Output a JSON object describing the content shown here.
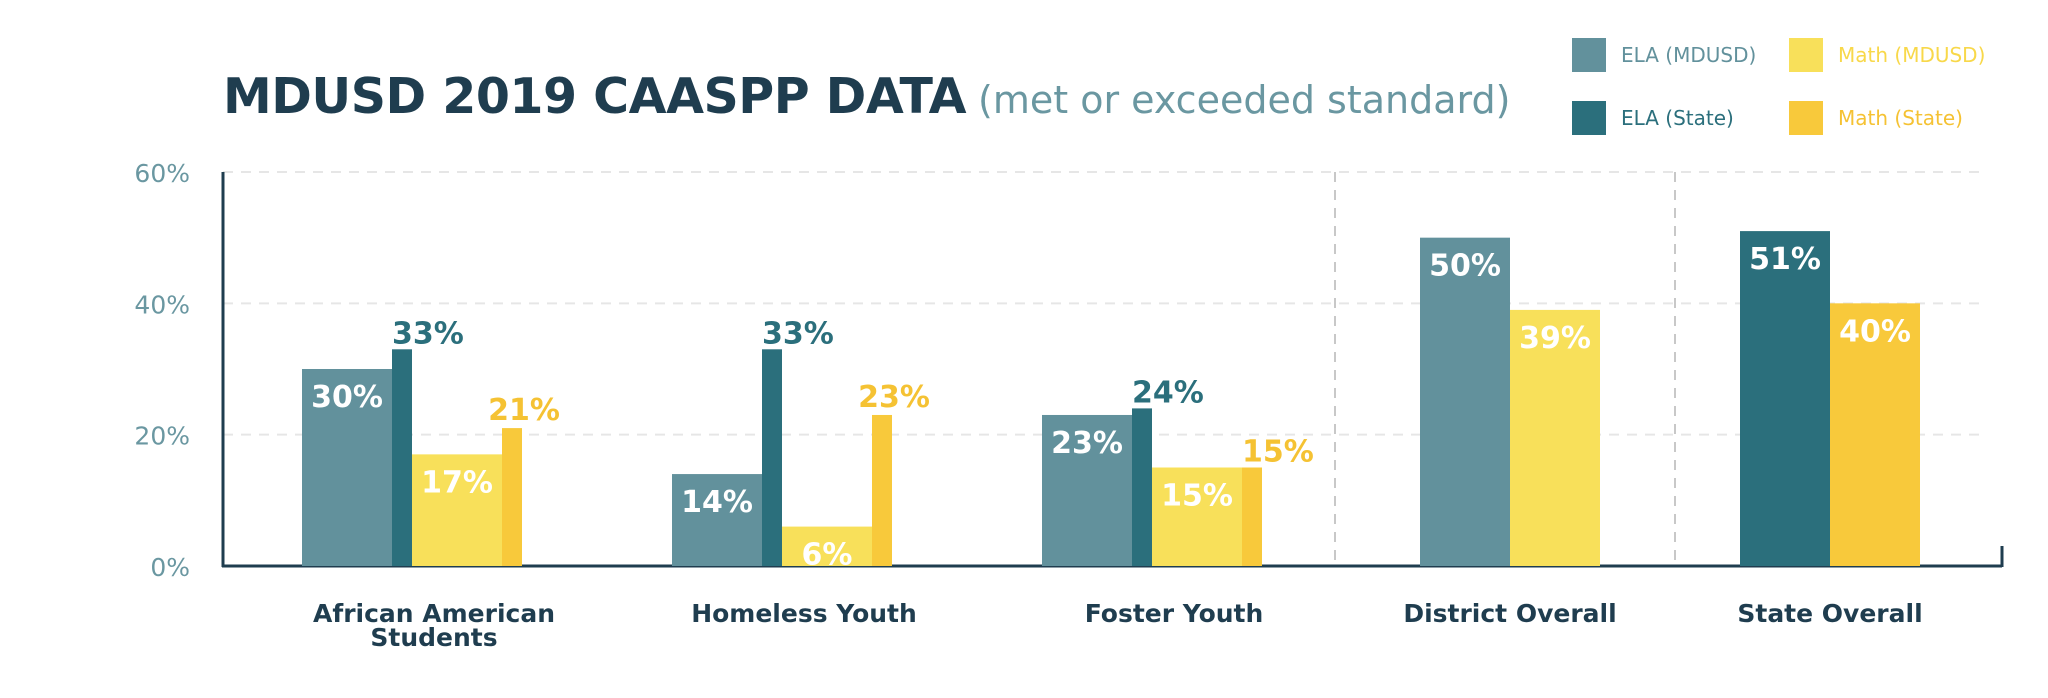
{
  "title": "MDUSD 2019 CAASPP DATA",
  "subtitle": "(met or exceeded standard)",
  "legend": [
    {
      "label": "ELA (MDUSD)",
      "color": "#62919c"
    },
    {
      "label": "Math (MDUSD)",
      "color": "#f8e05a"
    },
    {
      "label": "ELA (State)",
      "color": "#2b6f7c"
    },
    {
      "label": "Math (State)",
      "color": "#f8c93b"
    }
  ],
  "chart_data": {
    "type": "bar",
    "title": "MDUSD 2019 CAASPP DATA",
    "subtitle": "(met or exceeded standard)",
    "xlabel": "",
    "ylabel": "",
    "ylim": [
      0,
      60
    ],
    "y_ticks": [
      "0%",
      "20%",
      "40%",
      "60%"
    ],
    "y_tick_values": [
      0,
      20,
      40,
      60
    ],
    "grid": true,
    "legend_position": "top-right",
    "categories": [
      "African American Students",
      "Homeless Youth",
      "Foster Youth",
      "District Overall",
      "State Overall"
    ],
    "series": [
      {
        "name": "ELA (MDUSD)",
        "color": "#62919c",
        "values": [
          30,
          14,
          23,
          50,
          null
        ]
      },
      {
        "name": "ELA (State)",
        "color": "#2b6f7c",
        "values": [
          33,
          33,
          24,
          null,
          51
        ]
      },
      {
        "name": "Math (MDUSD)",
        "color": "#f8e05a",
        "values": [
          17,
          6,
          15,
          39,
          null
        ]
      },
      {
        "name": "Math (State)",
        "color": "#f8c93b",
        "values": [
          21,
          23,
          15,
          null,
          40
        ]
      }
    ],
    "value_labels": {
      "ELA (MDUSD)": [
        "30%",
        "14%",
        "23%",
        "50%",
        ""
      ],
      "ELA (State)": [
        "33%",
        "33%",
        "24%",
        "",
        "51%"
      ],
      "Math (MDUSD)": [
        "17%",
        "6%",
        "15%",
        "39%",
        ""
      ],
      "Math (State)": [
        "21%",
        "23%",
        "15%",
        "",
        "40%"
      ]
    }
  }
}
